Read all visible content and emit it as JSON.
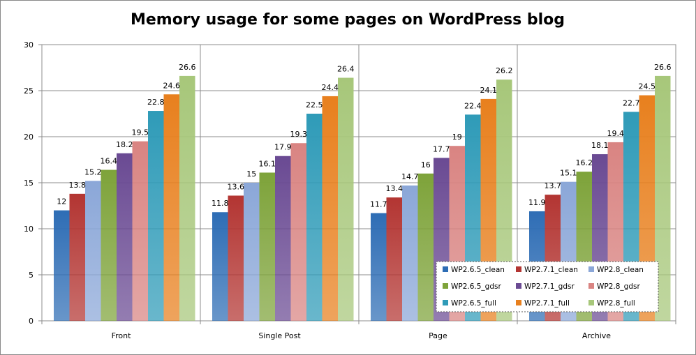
{
  "chart_data": {
    "type": "bar",
    "title": "Memory usage for some pages on WordPress blog",
    "xlabel": "",
    "ylabel": "",
    "ylim": [
      0,
      30
    ],
    "yticks": [
      "0",
      "5",
      "10",
      "15",
      "20",
      "25",
      "30"
    ],
    "grid": true,
    "legend_position": "bottom-right",
    "categories": [
      "Front",
      "Single Post",
      "Page",
      "Archive"
    ],
    "series": [
      {
        "name": "WP2.6.5_clean",
        "color": "#2e6db5",
        "values": [
          12,
          11.8,
          11.7,
          11.9
        ]
      },
      {
        "name": "WP2.7.1_clean",
        "color": "#b33532",
        "values": [
          13.8,
          13.6,
          13.4,
          13.7
        ]
      },
      {
        "name": "WP2.8_clean",
        "color": "#8ba7d8",
        "values": [
          15.2,
          15,
          14.7,
          15.1
        ]
      },
      {
        "name": "WP2.6.5_gdsr",
        "color": "#7ea33a",
        "values": [
          16.4,
          16.1,
          16,
          16.2
        ]
      },
      {
        "name": "WP2.7.1_gdsr",
        "color": "#6a4a93",
        "values": [
          18.2,
          17.9,
          17.7,
          18.1
        ]
      },
      {
        "name": "WP2.8_gdsr",
        "color": "#d98482",
        "values": [
          19.5,
          19.3,
          19,
          19.4
        ]
      },
      {
        "name": "WP2.6.5_full",
        "color": "#2f9bb8",
        "values": [
          22.8,
          22.5,
          22.4,
          22.7
        ]
      },
      {
        "name": "WP2.7.1_full",
        "color": "#e8801e",
        "values": [
          24.6,
          24.4,
          24.1,
          24.5
        ]
      },
      {
        "name": "WP2.8_full",
        "color": "#a7c77a",
        "values": [
          26.6,
          26.4,
          26.2,
          26.6
        ]
      }
    ],
    "data_labels": [
      [
        "12",
        "11.8",
        "11.7",
        "11.9"
      ],
      [
        "13.8",
        "13.6",
        "13.4",
        "13.7"
      ],
      [
        "15.2",
        "15",
        "14.7",
        "15.1"
      ],
      [
        "16.4",
        "16.1",
        "16",
        "16.2"
      ],
      [
        "18.2",
        "17.9",
        "17.7",
        "18.1"
      ],
      [
        "19.5",
        "19.3",
        "19",
        "19.4"
      ],
      [
        "22.8",
        "22.5",
        "22.4",
        "22.7"
      ],
      [
        "24.6",
        "24.4",
        "24.1",
        "24.5"
      ],
      [
        "26.6",
        "26.4",
        "26.2",
        "26.6"
      ]
    ]
  }
}
